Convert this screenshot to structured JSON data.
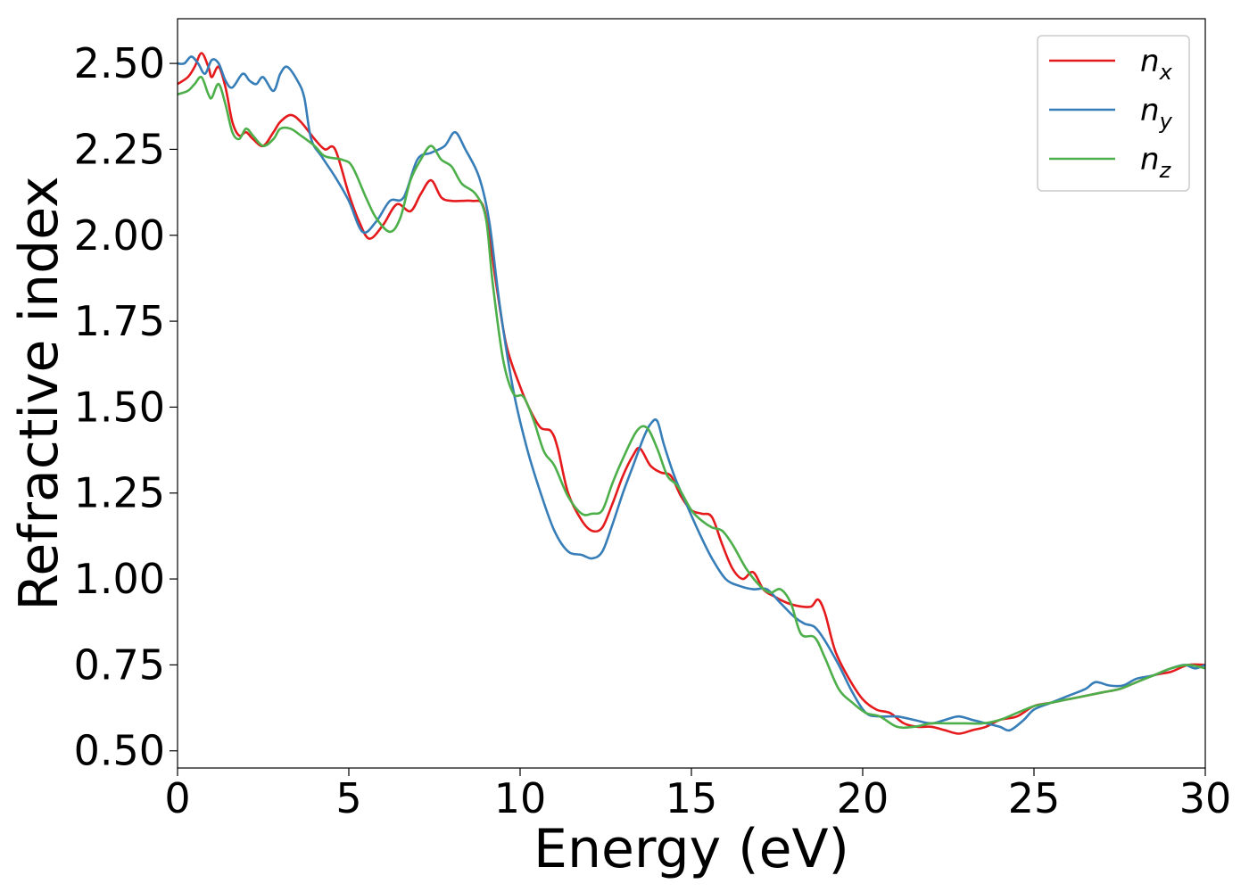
{
  "chart_data": {
    "type": "line",
    "xlabel": "Energy (eV)",
    "ylabel": "Refractive index",
    "xlim": [
      0,
      30
    ],
    "ylim": [
      0.45,
      2.63
    ],
    "xticks": [
      "0",
      "5",
      "10",
      "15",
      "20",
      "25",
      "30"
    ],
    "yticks": [
      "0.50",
      "0.75",
      "1.00",
      "1.25",
      "1.50",
      "1.75",
      "2.00",
      "2.25",
      "2.50"
    ],
    "grid": false,
    "legend_position": "top-right",
    "series": [
      {
        "name": "n_x",
        "legend_main": "n",
        "legend_sub": "x",
        "color": "#e41a1c",
        "points": [
          [
            0,
            2.44
          ],
          [
            0.3,
            2.46
          ],
          [
            0.5,
            2.49
          ],
          [
            0.7,
            2.53
          ],
          [
            0.9,
            2.49
          ],
          [
            1.0,
            2.46
          ],
          [
            1.2,
            2.49
          ],
          [
            1.4,
            2.43
          ],
          [
            1.6,
            2.33
          ],
          [
            1.8,
            2.29
          ],
          [
            2.0,
            2.3
          ],
          [
            2.2,
            2.28
          ],
          [
            2.5,
            2.26
          ],
          [
            2.8,
            2.3
          ],
          [
            3.0,
            2.33
          ],
          [
            3.3,
            2.35
          ],
          [
            3.6,
            2.33
          ],
          [
            4.0,
            2.28
          ],
          [
            4.3,
            2.25
          ],
          [
            4.6,
            2.25
          ],
          [
            5.0,
            2.12
          ],
          [
            5.3,
            2.04
          ],
          [
            5.6,
            1.99
          ],
          [
            6.0,
            2.03
          ],
          [
            6.4,
            2.09
          ],
          [
            6.8,
            2.07
          ],
          [
            7.1,
            2.12
          ],
          [
            7.4,
            2.16
          ],
          [
            7.7,
            2.11
          ],
          [
            8.0,
            2.1
          ],
          [
            8.3,
            2.1
          ],
          [
            8.6,
            2.1
          ],
          [
            8.9,
            2.09
          ],
          [
            9.1,
            2.0
          ],
          [
            9.3,
            1.86
          ],
          [
            9.6,
            1.68
          ],
          [
            10.0,
            1.56
          ],
          [
            10.3,
            1.49
          ],
          [
            10.6,
            1.44
          ],
          [
            10.9,
            1.43
          ],
          [
            11.1,
            1.38
          ],
          [
            11.4,
            1.25
          ],
          [
            11.8,
            1.17
          ],
          [
            12.1,
            1.14
          ],
          [
            12.4,
            1.15
          ],
          [
            12.7,
            1.22
          ],
          [
            13.0,
            1.3
          ],
          [
            13.3,
            1.36
          ],
          [
            13.5,
            1.38
          ],
          [
            13.8,
            1.33
          ],
          [
            14.1,
            1.31
          ],
          [
            14.4,
            1.3
          ],
          [
            14.7,
            1.24
          ],
          [
            15.0,
            1.2
          ],
          [
            15.3,
            1.19
          ],
          [
            15.6,
            1.18
          ],
          [
            15.9,
            1.1
          ],
          [
            16.2,
            1.03
          ],
          [
            16.5,
            1.0
          ],
          [
            16.8,
            1.02
          ],
          [
            17.1,
            0.97
          ],
          [
            17.4,
            0.95
          ],
          [
            17.8,
            0.93
          ],
          [
            18.2,
            0.92
          ],
          [
            18.5,
            0.92
          ],
          [
            18.7,
            0.94
          ],
          [
            18.9,
            0.9
          ],
          [
            19.2,
            0.79
          ],
          [
            19.6,
            0.71
          ],
          [
            20.0,
            0.65
          ],
          [
            20.4,
            0.62
          ],
          [
            20.8,
            0.61
          ],
          [
            21.2,
            0.58
          ],
          [
            21.6,
            0.57
          ],
          [
            22.0,
            0.57
          ],
          [
            22.4,
            0.56
          ],
          [
            22.8,
            0.55
          ],
          [
            23.2,
            0.56
          ],
          [
            23.6,
            0.57
          ],
          [
            24.0,
            0.59
          ],
          [
            24.5,
            0.6
          ],
          [
            25.0,
            0.63
          ],
          [
            25.5,
            0.64
          ],
          [
            26.0,
            0.65
          ],
          [
            26.5,
            0.66
          ],
          [
            27.0,
            0.67
          ],
          [
            27.5,
            0.68
          ],
          [
            28.0,
            0.7
          ],
          [
            28.5,
            0.72
          ],
          [
            29.0,
            0.73
          ],
          [
            29.5,
            0.75
          ],
          [
            30.0,
            0.75
          ]
        ]
      },
      {
        "name": "n_y",
        "legend_main": "n",
        "legend_sub": "y",
        "color": "#377eb8",
        "points": [
          [
            0,
            2.5
          ],
          [
            0.2,
            2.5
          ],
          [
            0.4,
            2.52
          ],
          [
            0.6,
            2.5
          ],
          [
            0.8,
            2.47
          ],
          [
            1.0,
            2.51
          ],
          [
            1.2,
            2.5
          ],
          [
            1.4,
            2.45
          ],
          [
            1.6,
            2.43
          ],
          [
            1.9,
            2.47
          ],
          [
            2.1,
            2.45
          ],
          [
            2.3,
            2.44
          ],
          [
            2.5,
            2.46
          ],
          [
            2.8,
            2.42
          ],
          [
            3.0,
            2.47
          ],
          [
            3.2,
            2.49
          ],
          [
            3.5,
            2.45
          ],
          [
            3.7,
            2.4
          ],
          [
            3.9,
            2.28
          ],
          [
            4.2,
            2.23
          ],
          [
            4.6,
            2.17
          ],
          [
            5.0,
            2.1
          ],
          [
            5.4,
            2.01
          ],
          [
            5.8,
            2.04
          ],
          [
            6.2,
            2.1
          ],
          [
            6.6,
            2.11
          ],
          [
            7.0,
            2.22
          ],
          [
            7.4,
            2.24
          ],
          [
            7.8,
            2.26
          ],
          [
            8.1,
            2.3
          ],
          [
            8.4,
            2.25
          ],
          [
            8.8,
            2.17
          ],
          [
            9.1,
            2.04
          ],
          [
            9.4,
            1.8
          ],
          [
            9.8,
            1.55
          ],
          [
            10.2,
            1.38
          ],
          [
            10.6,
            1.25
          ],
          [
            11.0,
            1.14
          ],
          [
            11.4,
            1.08
          ],
          [
            11.8,
            1.07
          ],
          [
            12.1,
            1.06
          ],
          [
            12.4,
            1.08
          ],
          [
            12.7,
            1.16
          ],
          [
            13.0,
            1.25
          ],
          [
            13.3,
            1.33
          ],
          [
            13.6,
            1.41
          ],
          [
            13.8,
            1.45
          ],
          [
            14.0,
            1.46
          ],
          [
            14.2,
            1.39
          ],
          [
            14.5,
            1.3
          ],
          [
            14.8,
            1.23
          ],
          [
            15.2,
            1.14
          ],
          [
            15.6,
            1.06
          ],
          [
            16.0,
            1.0
          ],
          [
            16.4,
            0.98
          ],
          [
            16.8,
            0.97
          ],
          [
            17.2,
            0.97
          ],
          [
            17.6,
            0.93
          ],
          [
            18.0,
            0.89
          ],
          [
            18.3,
            0.87
          ],
          [
            18.6,
            0.86
          ],
          [
            18.9,
            0.82
          ],
          [
            19.3,
            0.75
          ],
          [
            19.7,
            0.67
          ],
          [
            20.1,
            0.61
          ],
          [
            20.5,
            0.6
          ],
          [
            21.0,
            0.6
          ],
          [
            21.5,
            0.59
          ],
          [
            22.0,
            0.58
          ],
          [
            22.4,
            0.59
          ],
          [
            22.8,
            0.6
          ],
          [
            23.2,
            0.59
          ],
          [
            23.6,
            0.58
          ],
          [
            24.0,
            0.57
          ],
          [
            24.3,
            0.56
          ],
          [
            24.7,
            0.59
          ],
          [
            25.0,
            0.62
          ],
          [
            25.5,
            0.64
          ],
          [
            26.0,
            0.66
          ],
          [
            26.5,
            0.68
          ],
          [
            26.8,
            0.7
          ],
          [
            27.2,
            0.69
          ],
          [
            27.6,
            0.69
          ],
          [
            28.0,
            0.71
          ],
          [
            28.5,
            0.72
          ],
          [
            29.0,
            0.74
          ],
          [
            29.4,
            0.75
          ],
          [
            29.7,
            0.74
          ],
          [
            30.0,
            0.75
          ]
        ]
      },
      {
        "name": "n_z",
        "legend_main": "n",
        "legend_sub": "z",
        "color": "#4daf4a",
        "points": [
          [
            0,
            2.41
          ],
          [
            0.3,
            2.42
          ],
          [
            0.5,
            2.44
          ],
          [
            0.7,
            2.46
          ],
          [
            0.9,
            2.41
          ],
          [
            1.0,
            2.4
          ],
          [
            1.2,
            2.44
          ],
          [
            1.4,
            2.38
          ],
          [
            1.6,
            2.3
          ],
          [
            1.8,
            2.28
          ],
          [
            2.0,
            2.31
          ],
          [
            2.2,
            2.29
          ],
          [
            2.5,
            2.26
          ],
          [
            2.8,
            2.28
          ],
          [
            3.0,
            2.31
          ],
          [
            3.3,
            2.31
          ],
          [
            3.6,
            2.29
          ],
          [
            4.0,
            2.26
          ],
          [
            4.3,
            2.23
          ],
          [
            4.8,
            2.22
          ],
          [
            5.1,
            2.2
          ],
          [
            5.5,
            2.11
          ],
          [
            5.8,
            2.05
          ],
          [
            6.2,
            2.01
          ],
          [
            6.5,
            2.05
          ],
          [
            6.8,
            2.16
          ],
          [
            7.1,
            2.22
          ],
          [
            7.4,
            2.26
          ],
          [
            7.7,
            2.22
          ],
          [
            8.0,
            2.2
          ],
          [
            8.3,
            2.15
          ],
          [
            8.7,
            2.12
          ],
          [
            9.0,
            2.05
          ],
          [
            9.2,
            1.86
          ],
          [
            9.5,
            1.64
          ],
          [
            9.8,
            1.54
          ],
          [
            10.1,
            1.53
          ],
          [
            10.4,
            1.46
          ],
          [
            10.7,
            1.37
          ],
          [
            11.0,
            1.33
          ],
          [
            11.4,
            1.24
          ],
          [
            11.8,
            1.19
          ],
          [
            12.1,
            1.19
          ],
          [
            12.4,
            1.2
          ],
          [
            12.7,
            1.28
          ],
          [
            13.0,
            1.35
          ],
          [
            13.4,
            1.43
          ],
          [
            13.7,
            1.44
          ],
          [
            14.0,
            1.38
          ],
          [
            14.3,
            1.3
          ],
          [
            14.6,
            1.27
          ],
          [
            15.0,
            1.2
          ],
          [
            15.3,
            1.17
          ],
          [
            15.6,
            1.15
          ],
          [
            15.9,
            1.14
          ],
          [
            16.2,
            1.1
          ],
          [
            16.6,
            1.03
          ],
          [
            17.0,
            0.98
          ],
          [
            17.3,
            0.96
          ],
          [
            17.6,
            0.97
          ],
          [
            17.9,
            0.93
          ],
          [
            18.2,
            0.84
          ],
          [
            18.6,
            0.83
          ],
          [
            18.9,
            0.77
          ],
          [
            19.3,
            0.68
          ],
          [
            19.7,
            0.64
          ],
          [
            20.1,
            0.61
          ],
          [
            20.5,
            0.6
          ],
          [
            21.0,
            0.57
          ],
          [
            21.5,
            0.57
          ],
          [
            22.0,
            0.58
          ],
          [
            22.5,
            0.58
          ],
          [
            23.0,
            0.58
          ],
          [
            23.5,
            0.58
          ],
          [
            24.0,
            0.59
          ],
          [
            24.5,
            0.61
          ],
          [
            25.0,
            0.63
          ],
          [
            25.5,
            0.64
          ],
          [
            26.0,
            0.65
          ],
          [
            26.5,
            0.66
          ],
          [
            27.0,
            0.67
          ],
          [
            27.5,
            0.68
          ],
          [
            28.0,
            0.7
          ],
          [
            28.5,
            0.72
          ],
          [
            29.0,
            0.74
          ],
          [
            29.5,
            0.75
          ],
          [
            30.0,
            0.74
          ]
        ]
      }
    ]
  }
}
